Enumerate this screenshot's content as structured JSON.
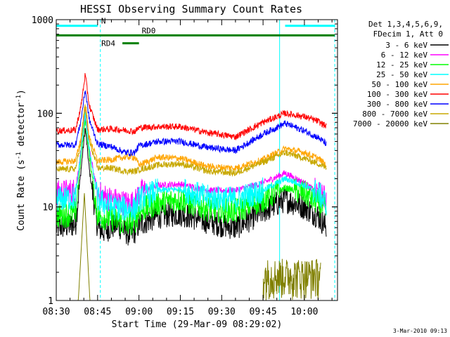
{
  "chart_data": {
    "type": "line",
    "title": "HESSI Observing Summary Count Rates",
    "xlabel": "Start Time (29-Mar-09 08:29:02)",
    "ylabel_main": "Count Rate (s",
    "ylabel_sup1": "-1",
    "ylabel_mid": " detector",
    "ylabel_sup2": "-1",
    "ylabel_end": ")",
    "yscale": "log",
    "ylim": [
      1,
      1000
    ],
    "xlim_minutes": [
      0,
      102
    ],
    "x_tick_labels": [
      "08:30",
      "08:45",
      "09:00",
      "09:15",
      "09:30",
      "09:45",
      "10:00"
    ],
    "x_tick_minutes": [
      0,
      15,
      30,
      45,
      60,
      75,
      90
    ],
    "y_tick_labels": [
      "1",
      "10",
      "100",
      "1000"
    ],
    "y_tick_values": [
      1,
      10,
      100,
      1000
    ],
    "legend_header": [
      "Det 1,3,4,5,6,9,",
      "FDecim 1, Att 0"
    ],
    "legend_position": "right",
    "series": [
      {
        "name": "3 - 6 keV",
        "color": "#000000",
        "points": [
          [
            0,
            6
          ],
          [
            7,
            6.5
          ],
          [
            9,
            25
          ],
          [
            10.5,
            70
          ],
          [
            12,
            25
          ],
          [
            15,
            6
          ],
          [
            17,
            5.5
          ],
          [
            22,
            6.5
          ],
          [
            25,
            5.5
          ],
          [
            27,
            5
          ],
          [
            28.5,
            5.5
          ],
          [
            30,
            6.5
          ],
          [
            37,
            8
          ],
          [
            45,
            8.5
          ],
          [
            55,
            7
          ],
          [
            65,
            6
          ],
          [
            75,
            9
          ],
          [
            83,
            12
          ],
          [
            90,
            10
          ],
          [
            95,
            8
          ],
          [
            98,
            6
          ]
        ]
      },
      {
        "name": "6 - 12 keV",
        "color": "#ff00ff",
        "points": [
          [
            0,
            14
          ],
          [
            7,
            15
          ],
          [
            9,
            40
          ],
          [
            10.5,
            110
          ],
          [
            12,
            40
          ],
          [
            15,
            14
          ],
          [
            20,
            12
          ],
          [
            25,
            11
          ],
          [
            28.5,
            11
          ],
          [
            30,
            14
          ],
          [
            37,
            17
          ],
          [
            45,
            17.5
          ],
          [
            55,
            15
          ],
          [
            65,
            15
          ],
          [
            75,
            18
          ],
          [
            83,
            23
          ],
          [
            90,
            18
          ],
          [
            95,
            14
          ],
          [
            98,
            12
          ]
        ]
      },
      {
        "name": "12 - 25 keV",
        "color": "#00ff00",
        "points": [
          [
            0,
            8
          ],
          [
            7,
            8.5
          ],
          [
            9,
            35
          ],
          [
            10.5,
            90
          ],
          [
            12,
            35
          ],
          [
            15,
            8
          ],
          [
            20,
            7.5
          ],
          [
            25,
            6.5
          ],
          [
            28.5,
            7
          ],
          [
            30,
            9
          ],
          [
            37,
            11
          ],
          [
            45,
            12
          ],
          [
            55,
            9.5
          ],
          [
            65,
            9
          ],
          [
            75,
            12
          ],
          [
            83,
            16
          ],
          [
            90,
            14
          ],
          [
            95,
            11
          ],
          [
            98,
            9
          ]
        ]
      },
      {
        "name": "25 - 50 keV",
        "color": "#00ffff",
        "points": [
          [
            0,
            12
          ],
          [
            7,
            12.5
          ],
          [
            9,
            40
          ],
          [
            10.5,
            100
          ],
          [
            12,
            40
          ],
          [
            15,
            12
          ],
          [
            20,
            10
          ],
          [
            25,
            9.5
          ],
          [
            28.5,
            9.5
          ],
          [
            30,
            12
          ],
          [
            37,
            15
          ],
          [
            45,
            15.5
          ],
          [
            55,
            12.5
          ],
          [
            65,
            12
          ],
          [
            75,
            15
          ],
          [
            83,
            20
          ],
          [
            90,
            17
          ],
          [
            95,
            14
          ],
          [
            98,
            11
          ]
        ]
      },
      {
        "name": "50 - 100 keV",
        "color": "#ffa500",
        "points": [
          [
            0,
            30
          ],
          [
            7,
            31
          ],
          [
            9,
            55
          ],
          [
            10.5,
            130
          ],
          [
            12,
            55
          ],
          [
            15,
            31
          ],
          [
            20,
            32
          ],
          [
            25,
            34
          ],
          [
            28.5,
            34
          ],
          [
            30,
            28
          ],
          [
            37,
            34
          ],
          [
            45,
            33
          ],
          [
            55,
            27
          ],
          [
            65,
            26
          ],
          [
            75,
            32
          ],
          [
            83,
            42
          ],
          [
            90,
            38
          ],
          [
            95,
            33
          ],
          [
            98,
            28
          ]
        ]
      },
      {
        "name": "100 - 300 keV",
        "color": "#ff0000",
        "points": [
          [
            0,
            65
          ],
          [
            7,
            66
          ],
          [
            9,
            120
          ],
          [
            10.5,
            260
          ],
          [
            12,
            120
          ],
          [
            15,
            67
          ],
          [
            20,
            68
          ],
          [
            25,
            66
          ],
          [
            28.5,
            64
          ],
          [
            30,
            70
          ],
          [
            37,
            72
          ],
          [
            45,
            72
          ],
          [
            55,
            62
          ],
          [
            65,
            56
          ],
          [
            75,
            80
          ],
          [
            83,
            100
          ],
          [
            90,
            92
          ],
          [
            95,
            82
          ],
          [
            98,
            72
          ]
        ]
      },
      {
        "name": "300 - 800 keV",
        "color": "#0000ff",
        "points": [
          [
            0,
            46
          ],
          [
            7,
            46
          ],
          [
            9,
            85
          ],
          [
            10.5,
            180
          ],
          [
            12,
            85
          ],
          [
            15,
            47
          ],
          [
            20,
            44
          ],
          [
            25,
            38
          ],
          [
            28.5,
            38
          ],
          [
            30,
            45
          ],
          [
            37,
            50
          ],
          [
            45,
            50
          ],
          [
            55,
            43
          ],
          [
            65,
            40
          ],
          [
            75,
            60
          ],
          [
            83,
            78
          ],
          [
            90,
            65
          ],
          [
            95,
            55
          ],
          [
            98,
            47
          ]
        ]
      },
      {
        "name": "800 - 7000 keV",
        "color": "#c8a800",
        "points": [
          [
            0,
            25
          ],
          [
            7,
            25.5
          ],
          [
            9,
            50
          ],
          [
            10.5,
            120
          ],
          [
            12,
            50
          ],
          [
            15,
            26
          ],
          [
            20,
            26
          ],
          [
            25,
            24
          ],
          [
            28.5,
            24
          ],
          [
            30,
            25
          ],
          [
            37,
            28
          ],
          [
            45,
            29
          ],
          [
            55,
            24
          ],
          [
            65,
            23
          ],
          [
            75,
            30
          ],
          [
            83,
            38
          ],
          [
            90,
            33
          ],
          [
            95,
            29
          ],
          [
            98,
            26
          ]
        ]
      },
      {
        "name": "7000 - 20000 keV",
        "color": "#808000",
        "points": [
          [
            0,
            1
          ],
          [
            8,
            1
          ],
          [
            10.2,
            14
          ],
          [
            12.2,
            1
          ],
          [
            76,
            1
          ],
          [
            77,
            1.8
          ],
          [
            79,
            2.2
          ],
          [
            80,
            2.8
          ],
          [
            81,
            1.8
          ],
          [
            82,
            2.2
          ],
          [
            84,
            2.4
          ],
          [
            86,
            2
          ],
          [
            88,
            2.3
          ],
          [
            90,
            2
          ],
          [
            92,
            1.8
          ],
          [
            94,
            1.7
          ],
          [
            96,
            1
          ]
        ]
      }
    ],
    "mode_bars": [
      {
        "label": "N",
        "color": "#00ffff",
        "value": 860,
        "segments": [
          [
            0,
            15
          ],
          [
            83,
            101
          ]
        ]
      },
      {
        "label": "RD0",
        "color": "#008000",
        "value": 680,
        "segments": [
          [
            0,
            101
          ]
        ]
      },
      {
        "label": "RD4",
        "color": "#008000",
        "value": 560,
        "segments": [
          [
            24,
            30
          ]
        ]
      }
    ],
    "vertical_markers": [
      {
        "minute": 0,
        "style": "solid"
      },
      {
        "minute": 16,
        "style": "dashed"
      },
      {
        "minute": 81,
        "style": "solid"
      },
      {
        "minute": 101,
        "style": "dashed"
      }
    ],
    "marker_color": "#00ffff",
    "grid": false
  },
  "footer_date": "3-Mar-2010 09:13"
}
